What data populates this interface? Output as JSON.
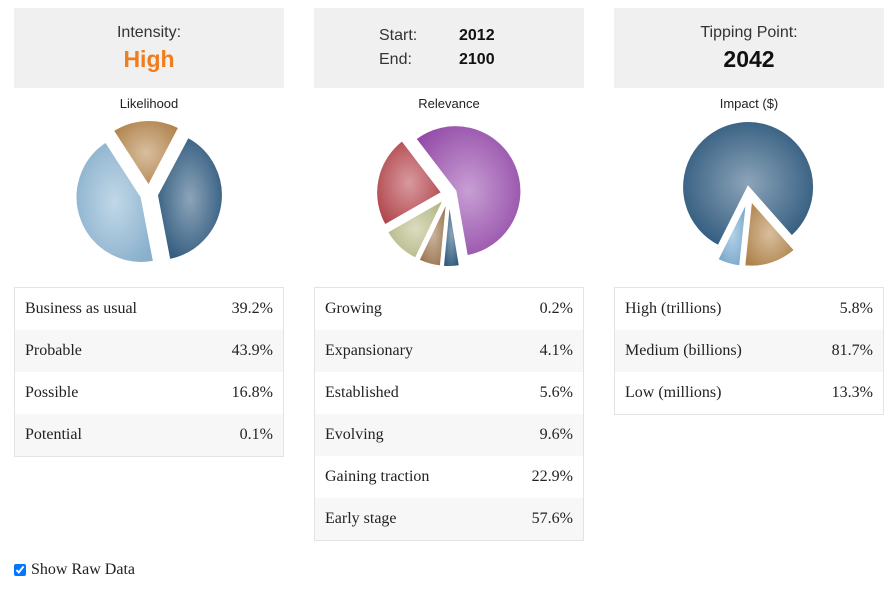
{
  "panels": {
    "intensity": {
      "label": "Intensity:",
      "value": "High"
    },
    "timeframe": {
      "start_label": "Start:",
      "start_value": "2012",
      "end_label": "End:",
      "end_value": "2100"
    },
    "tipping": {
      "label": "Tipping Point:",
      "value": "2042"
    }
  },
  "chart_data": [
    {
      "type": "pie",
      "title": "Likelihood",
      "categories": [
        "Business as usual",
        "Probable",
        "Possible",
        "Potential"
      ],
      "values": [
        39.2,
        43.9,
        16.8,
        0.1
      ],
      "labels": [
        "39.2%",
        "43.9%",
        "16.8%",
        "0.1%"
      ],
      "colors": [
        "#2d5a80",
        "#8fb8d6",
        "#b8894f",
        "#d9e4ec"
      ]
    },
    {
      "type": "pie",
      "title": "Relevance",
      "categories": [
        "Growing",
        "Expansionary",
        "Established",
        "Evolving",
        "Gaining traction",
        "Early stage"
      ],
      "values": [
        0.2,
        4.1,
        5.6,
        9.6,
        22.9,
        57.6
      ],
      "labels": [
        "0.2%",
        "4.1%",
        "5.6%",
        "9.6%",
        "22.9%",
        "57.6%"
      ],
      "colors": [
        "#c0c0a0",
        "#2d5a80",
        "#a07850",
        "#bcbf8a",
        "#b8474e",
        "#9b4fb0"
      ]
    },
    {
      "type": "pie",
      "title": "Impact ($)",
      "categories": [
        "High (trillions)",
        "Medium (billions)",
        "Low (millions)"
      ],
      "values": [
        5.8,
        81.7,
        13.3
      ],
      "labels": [
        "5.8%",
        "81.7%",
        "13.3%"
      ],
      "colors": [
        "#7aaed3",
        "#2d5a80",
        "#b8894f"
      ]
    }
  ],
  "raw_data": {
    "label": "Show Raw Data",
    "checked": true
  }
}
